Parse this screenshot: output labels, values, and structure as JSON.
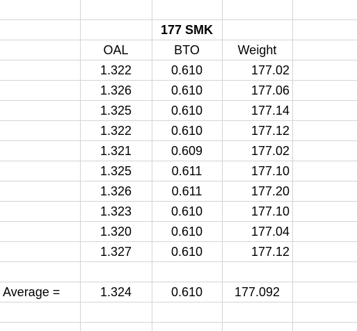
{
  "title": "177 SMK",
  "headers": [
    "OAL",
    "BTO",
    "Weight"
  ],
  "rows": [
    [
      "1.322",
      "0.610",
      "177.02"
    ],
    [
      "1.326",
      "0.610",
      "177.06"
    ],
    [
      "1.325",
      "0.610",
      "177.14"
    ],
    [
      "1.322",
      "0.610",
      "177.12"
    ],
    [
      "1.321",
      "0.609",
      "177.02"
    ],
    [
      "1.325",
      "0.611",
      "177.10"
    ],
    [
      "1.326",
      "0.611",
      "177.20"
    ],
    [
      "1.323",
      "0.610",
      "177.10"
    ],
    [
      "1.320",
      "0.610",
      "177.04"
    ],
    [
      "1.327",
      "0.610",
      "177.12"
    ]
  ],
  "average": {
    "label": "Average =",
    "values": [
      "1.324",
      "0.610",
      "177.092"
    ]
  }
}
